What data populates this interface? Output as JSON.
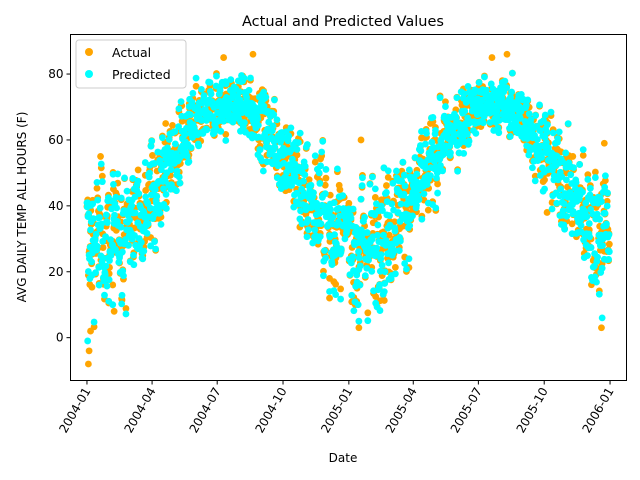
{
  "chart_data": {
    "type": "scatter",
    "title": "Actual and Predicted Values",
    "xlabel": "Date",
    "ylabel": "AVG DAILY TEMP ALL HOURS (F)",
    "xlim": [
      "2003-12-09",
      "2006-01-24"
    ],
    "ylim": [
      -13,
      92
    ],
    "grid": false,
    "legend_position": "top-left",
    "x_ticks": [
      "2004-01",
      "2004-04",
      "2004-07",
      "2004-10",
      "2005-01",
      "2005-04",
      "2005-07",
      "2005-10",
      "2006-01"
    ],
    "y_ticks": [
      0,
      20,
      40,
      60,
      80
    ],
    "x_range": [
      "2004-01-01",
      "2005-12-31"
    ],
    "series": [
      {
        "name": "Actual",
        "color": "#ffa500",
        "outliers": [
          {
            "date": "2004-01-03",
            "value": -8
          },
          {
            "date": "2004-01-04",
            "value": -4
          },
          {
            "date": "2004-01-06",
            "value": 2
          },
          {
            "date": "2004-01-20",
            "value": 55
          },
          {
            "date": "2004-02-08",
            "value": 8
          },
          {
            "date": "2004-02-06",
            "value": 16
          },
          {
            "date": "2004-04-20",
            "value": 65
          },
          {
            "date": "2004-07-10",
            "value": 85
          },
          {
            "date": "2004-08-20",
            "value": 86
          },
          {
            "date": "2004-12-05",
            "value": 12
          },
          {
            "date": "2004-12-05",
            "value": 18
          },
          {
            "date": "2005-01-10",
            "value": 10
          },
          {
            "date": "2005-01-12",
            "value": 11
          },
          {
            "date": "2005-01-15",
            "value": 3
          },
          {
            "date": "2005-01-18",
            "value": 60
          },
          {
            "date": "2005-04-25",
            "value": 65
          },
          {
            "date": "2005-07-20",
            "value": 85
          },
          {
            "date": "2005-08-10",
            "value": 86
          },
          {
            "date": "2005-10-05",
            "value": 38
          },
          {
            "date": "2005-11-10",
            "value": 55
          },
          {
            "date": "2005-12-20",
            "value": 3
          },
          {
            "date": "2005-12-24",
            "value": 59
          }
        ]
      },
      {
        "name": "Predicted",
        "color": "#00ffff",
        "outliers": [
          {
            "date": "2004-01-02",
            "value": -1
          },
          {
            "date": "2004-02-06",
            "value": 10
          },
          {
            "date": "2004-12-05",
            "value": 14
          },
          {
            "date": "2005-01-15",
            "value": 5
          },
          {
            "date": "2005-01-14",
            "value": 10
          },
          {
            "date": "2005-12-21",
            "value": 6
          }
        ]
      }
    ]
  }
}
